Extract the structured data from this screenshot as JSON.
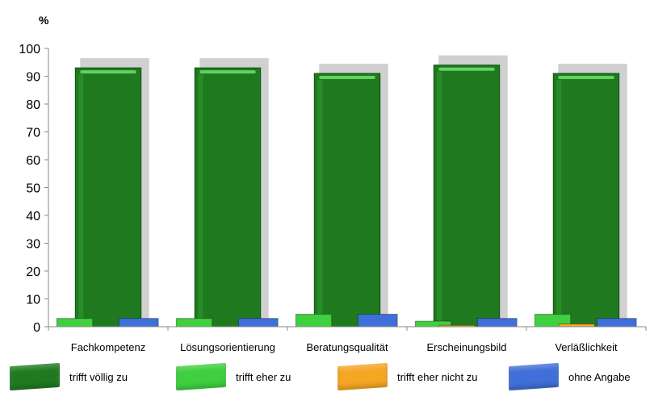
{
  "chart_data": {
    "type": "bar",
    "ylabel": "%",
    "ylim": [
      0,
      100
    ],
    "yticks": [
      0,
      10,
      20,
      30,
      40,
      50,
      60,
      70,
      80,
      90,
      100
    ],
    "categories": [
      "Fachkompetenz",
      "Lösungsorientierung",
      "Beratungsqualität",
      "Erscheinungsbild",
      "Verläßlichkeit"
    ],
    "series": [
      {
        "name": "trifft völlig zu",
        "color": "#1f7a1f",
        "values": [
          93,
          93,
          91,
          94,
          91
        ]
      },
      {
        "name": "trifft eher zu",
        "color": "#3fcf3f",
        "values": [
          3,
          3,
          4.5,
          2,
          4.5
        ]
      },
      {
        "name": "trifft eher nicht zu",
        "color": "#f5a623",
        "values": [
          0,
          0,
          0,
          0.5,
          1
        ]
      },
      {
        "name": "ohne Angabe",
        "color": "#3f6fd8",
        "values": [
          3,
          3,
          4.5,
          3,
          3
        ]
      }
    ],
    "grid": false,
    "legend_position": "bottom"
  }
}
